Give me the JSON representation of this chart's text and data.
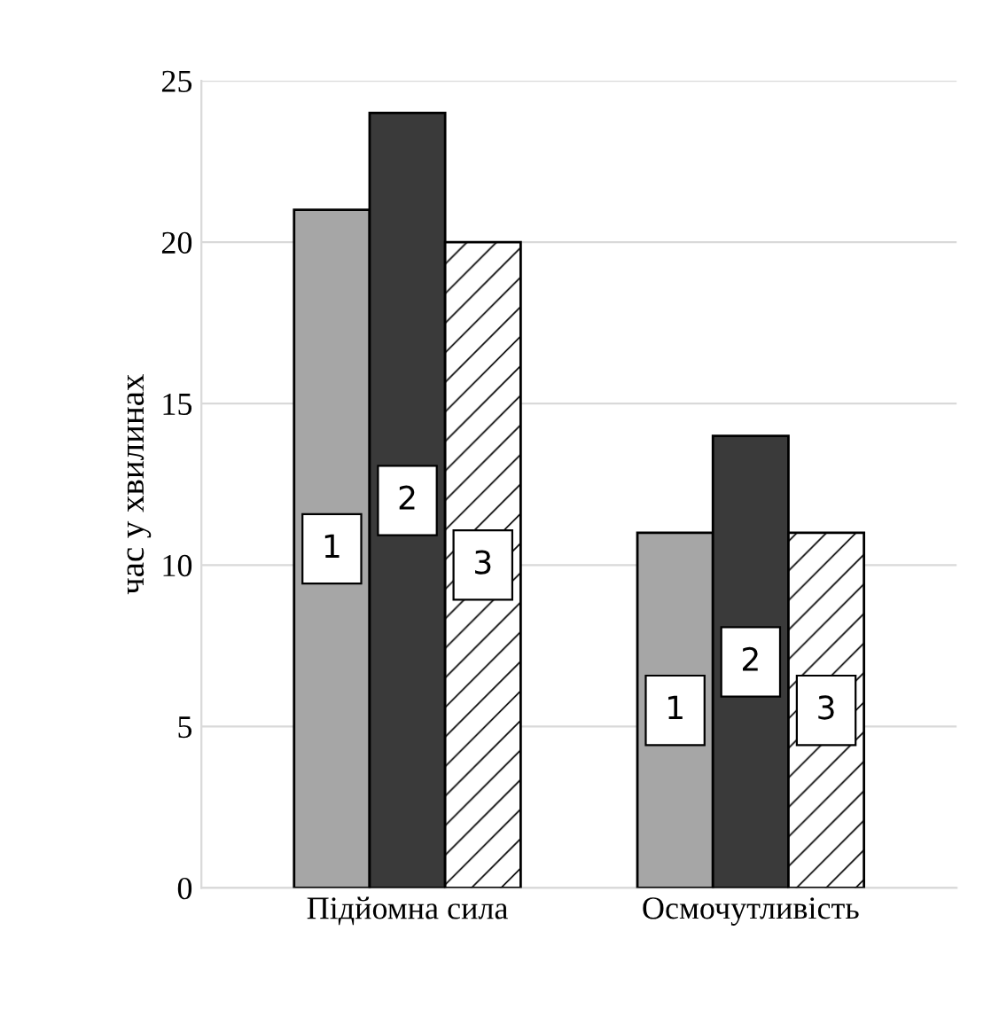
{
  "chart_data": {
    "type": "bar",
    "ylabel": "час у хвилинах",
    "categories": [
      "Підйомна сила",
      "Осмочутливість"
    ],
    "series": [
      {
        "name": "1",
        "color": "#a6a6a6",
        "values": [
          21,
          11
        ]
      },
      {
        "name": "2",
        "color": "#3a3a3a",
        "values": [
          24,
          14
        ]
      },
      {
        "name": "3",
        "color": "#ffffff",
        "values": [
          20,
          11
        ]
      }
    ],
    "ylim": [
      0,
      25
    ],
    "yticks": [
      0,
      5,
      10,
      15,
      20,
      25
    ],
    "grid": "y",
    "legend": false
  }
}
